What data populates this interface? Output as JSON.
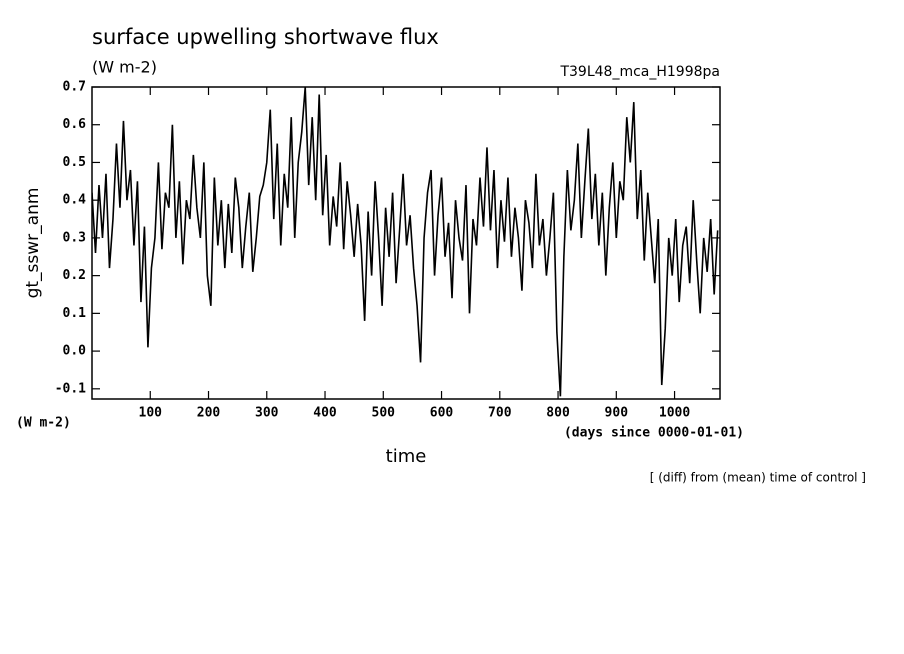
{
  "chart_data": {
    "type": "line",
    "title": "surface upwelling shortwave flux",
    "subtitle": "(W m-2)",
    "annotation": "T39L48_mca_H1998pa",
    "y_label": "gt_sswr_anm",
    "y_units": "(W m-2)",
    "x_units": "(days since 0000-01-01)",
    "x_label": "time",
    "note": "[ (diff) from (mean) time of control ]",
    "xlim": [
      0,
      1078
    ],
    "ylim": [
      -0.127,
      0.7
    ],
    "xticks": [
      100,
      200,
      300,
      400,
      500,
      600,
      700,
      800,
      900,
      1000
    ],
    "yticks": [
      {
        "value": -0.1,
        "label": "-0.1"
      },
      {
        "value": 0,
        "label": "0.0"
      },
      {
        "value": 0.1,
        "label": "0.1"
      },
      {
        "value": 0.2,
        "label": "0.2"
      },
      {
        "value": 0.3,
        "label": "0.3"
      },
      {
        "value": 0.4,
        "label": "0.4"
      },
      {
        "value": 0.5,
        "label": "0.5"
      },
      {
        "value": 0.6,
        "label": "0.6"
      },
      {
        "value": 0.7,
        "label": "0.7"
      }
    ],
    "x": [
      0,
      6,
      12,
      18,
      24,
      30,
      36,
      42,
      48,
      54,
      60,
      66,
      72,
      78,
      84,
      90,
      96,
      102,
      108,
      114,
      120,
      126,
      132,
      138,
      144,
      150,
      156,
      162,
      168,
      174,
      180,
      186,
      192,
      198,
      204,
      210,
      216,
      222,
      228,
      234,
      240,
      246,
      252,
      258,
      264,
      270,
      276,
      282,
      288,
      294,
      300,
      306,
      312,
      318,
      324,
      330,
      336,
      342,
      348,
      354,
      360,
      366,
      372,
      378,
      384,
      390,
      396,
      402,
      408,
      414,
      420,
      426,
      432,
      438,
      444,
      450,
      456,
      462,
      468,
      474,
      480,
      486,
      492,
      498,
      504,
      510,
      516,
      522,
      528,
      534,
      540,
      546,
      552,
      558,
      564,
      570,
      576,
      582,
      588,
      594,
      600,
      606,
      612,
      618,
      624,
      630,
      636,
      642,
      648,
      654,
      660,
      666,
      672,
      678,
      684,
      690,
      696,
      702,
      708,
      714,
      720,
      726,
      732,
      738,
      744,
      750,
      756,
      762,
      768,
      774,
      780,
      786,
      792,
      798,
      804,
      810,
      816,
      822,
      828,
      834,
      840,
      846,
      852,
      858,
      864,
      870,
      876,
      882,
      888,
      894,
      900,
      906,
      912,
      918,
      924,
      930,
      936,
      942,
      948,
      954,
      960,
      966,
      972,
      978,
      984,
      990,
      996,
      1002,
      1008,
      1014,
      1020,
      1026,
      1032,
      1038,
      1044,
      1050,
      1056,
      1062,
      1068,
      1074
    ],
    "series": [
      {
        "color": "#000000",
        "values": [
          0.42,
          0.26,
          0.44,
          0.3,
          0.47,
          0.22,
          0.35,
          0.55,
          0.38,
          0.61,
          0.4,
          0.48,
          0.28,
          0.45,
          0.13,
          0.33,
          0.01,
          0.22,
          0.3,
          0.5,
          0.27,
          0.42,
          0.38,
          0.6,
          0.3,
          0.45,
          0.23,
          0.4,
          0.35,
          0.52,
          0.38,
          0.3,
          0.5,
          0.2,
          0.12,
          0.46,
          0.28,
          0.4,
          0.22,
          0.39,
          0.26,
          0.46,
          0.38,
          0.22,
          0.33,
          0.42,
          0.21,
          0.3,
          0.41,
          0.44,
          0.5,
          0.64,
          0.35,
          0.55,
          0.28,
          0.47,
          0.38,
          0.62,
          0.3,
          0.5,
          0.58,
          0.7,
          0.44,
          0.62,
          0.4,
          0.68,
          0.36,
          0.52,
          0.28,
          0.41,
          0.33,
          0.5,
          0.27,
          0.45,
          0.36,
          0.25,
          0.39,
          0.28,
          0.08,
          0.37,
          0.2,
          0.45,
          0.3,
          0.12,
          0.38,
          0.25,
          0.42,
          0.18,
          0.32,
          0.47,
          0.28,
          0.36,
          0.22,
          0.12,
          -0.03,
          0.3,
          0.42,
          0.48,
          0.2,
          0.36,
          0.46,
          0.25,
          0.34,
          0.14,
          0.4,
          0.3,
          0.24,
          0.44,
          0.1,
          0.35,
          0.28,
          0.46,
          0.33,
          0.54,
          0.32,
          0.48,
          0.22,
          0.4,
          0.29,
          0.46,
          0.25,
          0.38,
          0.3,
          0.16,
          0.4,
          0.34,
          0.22,
          0.47,
          0.28,
          0.35,
          0.2,
          0.3,
          0.42,
          0.05,
          -0.12,
          0.25,
          0.48,
          0.32,
          0.4,
          0.55,
          0.3,
          0.45,
          0.59,
          0.35,
          0.47,
          0.28,
          0.42,
          0.2,
          0.38,
          0.5,
          0.3,
          0.45,
          0.4,
          0.62,
          0.5,
          0.66,
          0.35,
          0.48,
          0.24,
          0.42,
          0.3,
          0.18,
          0.35,
          -0.09,
          0.06,
          0.3,
          0.2,
          0.35,
          0.13,
          0.28,
          0.33,
          0.18,
          0.4,
          0.24,
          0.1,
          0.3,
          0.21,
          0.35,
          0.15,
          0.32
        ]
      }
    ]
  }
}
